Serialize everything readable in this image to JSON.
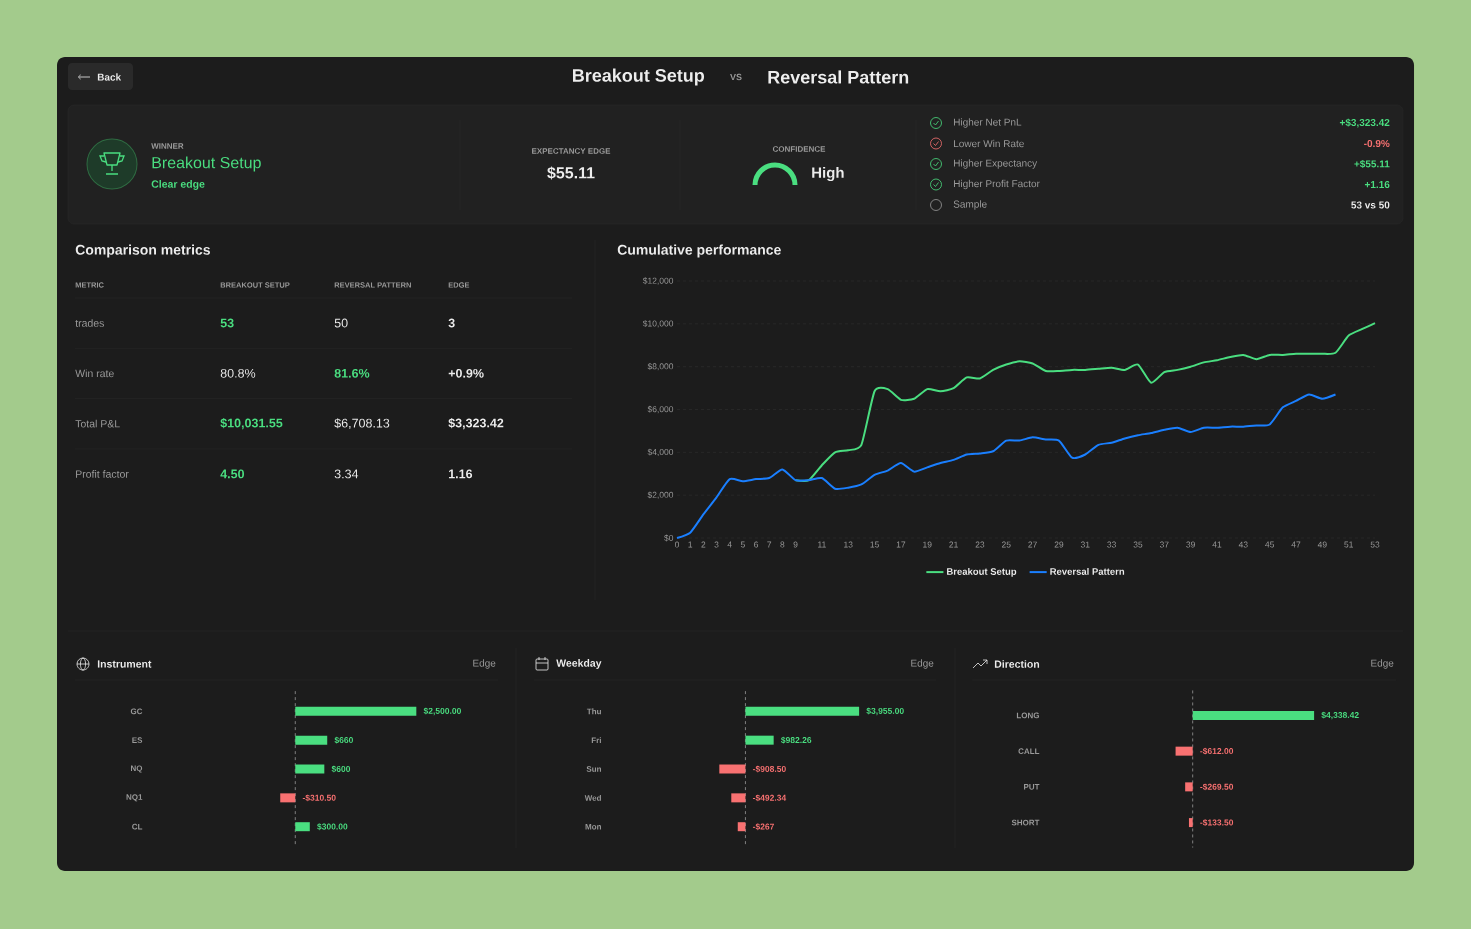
{
  "chart_data": [
    {
      "type": "other",
      "annotations": [
        "Back",
        "Breakout Setup",
        "VS",
        "Reversal Pattern",
        "WINNER",
        "Breakout Setup",
        "Clear edge",
        "EXPECTANCY EDGE",
        "$55.11",
        "CONFIDENCE",
        "High",
        "Higher Net PnL",
        "+$3,323.42",
        "Lower Win Rate",
        "-0.9%",
        "Higher Expectancy",
        "+$55.11",
        "Higher Profit Factor",
        "+1.16",
        "Sample",
        "53 vs 50"
      ]
    },
    {
      "type": "other",
      "title": "Comparison metrics",
      "annotations": [
        "METRIC",
        "BREAKOUT SETUP",
        "REVERSAL PATTERN",
        "EDGE",
        "trades",
        "53",
        "50",
        "3",
        "Win rate",
        "80.8%",
        "81.6%",
        "+0.9%",
        "Total P&L",
        "$10,031.55",
        "$6,708.13",
        "$3,323.42",
        "Profit factor",
        "4.50",
        "3.34",
        "1.16"
      ]
    },
    {
      "type": "line",
      "title": "Cumulative performance",
      "series": [
        {
          "name": "Breakout Setup",
          "color": "#4ade80",
          "x": [
            9,
            10,
            11,
            12,
            13,
            14,
            15,
            16,
            17,
            18,
            19,
            20,
            21,
            22,
            23,
            24,
            25,
            26,
            27,
            28,
            29,
            30,
            31,
            32,
            33,
            34,
            35,
            36,
            37,
            38,
            39,
            40,
            41,
            42,
            43,
            44,
            45,
            46,
            47,
            48,
            49,
            50,
            51,
            52,
            53
          ],
          "values": [
            2700,
            2700,
            3400,
            4000,
            4100,
            4350,
            6850,
            6950,
            6450,
            6500,
            6950,
            6850,
            7000,
            7500,
            7450,
            7850,
            8100,
            8250,
            8150,
            7800,
            7800,
            7850,
            7850,
            7900,
            7950,
            7850,
            8100,
            7250,
            7750,
            7850,
            8000,
            8200,
            8300,
            8450,
            8550,
            8350,
            8550,
            8550,
            8600,
            8600,
            8600,
            8650,
            9450,
            9750,
            10030
          ]
        },
        {
          "name": "Reversal Pattern",
          "color": "#1a7fff",
          "x": [
            0,
            1,
            2,
            3,
            4,
            5,
            6,
            7,
            8,
            9,
            10,
            11,
            12,
            13,
            14,
            15,
            16,
            17,
            18,
            19,
            20,
            21,
            22,
            23,
            24,
            25,
            26,
            27,
            28,
            29,
            30,
            31,
            32,
            33,
            34,
            35,
            36,
            37,
            38,
            39,
            40,
            41,
            42,
            43,
            44,
            45,
            46,
            47,
            48,
            49,
            50
          ],
          "values": [
            0,
            250,
            1100,
            1900,
            2750,
            2650,
            2750,
            2800,
            3200,
            2700,
            2700,
            2800,
            2300,
            2350,
            2500,
            2950,
            3150,
            3500,
            3100,
            3300,
            3500,
            3650,
            3900,
            3950,
            4050,
            4550,
            4550,
            4700,
            4600,
            4550,
            3750,
            3900,
            4350,
            4450,
            4650,
            4800,
            4900,
            5050,
            5150,
            4950,
            5150,
            5150,
            5200,
            5200,
            5250,
            5300,
            6100,
            6400,
            6700,
            6500,
            6700
          ]
        }
      ],
      "xlim": [
        0,
        53
      ],
      "ylim": [
        0,
        12000
      ],
      "xticks": [
        0,
        1,
        2,
        3,
        4,
        5,
        6,
        7,
        8,
        9,
        11,
        13,
        15,
        17,
        19,
        21,
        23,
        25,
        27,
        29,
        31,
        33,
        35,
        37,
        39,
        41,
        43,
        45,
        47,
        49,
        51,
        53
      ],
      "yticks": [
        {
          "value": 0,
          "label": "$0"
        },
        {
          "value": 2000,
          "label": "$2,000"
        },
        {
          "value": 4000,
          "label": "$4,000"
        },
        {
          "value": 6000,
          "label": "$6,000"
        },
        {
          "value": 8000,
          "label": "$8,000"
        },
        {
          "value": 10000,
          "label": "$10,000"
        },
        {
          "value": 12000,
          "label": "$12,000"
        }
      ],
      "grid": "y",
      "legend": "bottom",
      "marker": "none"
    },
    {
      "type": "bar",
      "orientation": "horizontal",
      "title": "Instrument",
      "annotations": [
        "Edge"
      ],
      "categories": [
        "GC",
        "ES",
        "NQ",
        "NQ1",
        "CL"
      ],
      "values": [
        2500,
        660,
        600,
        -310.5,
        300
      ],
      "colors": [
        "#4ade80",
        "#4ade80",
        "#4ade80",
        "#f87171",
        "#4ade80"
      ],
      "value_labels": [
        "$2,500.00",
        "$660",
        "$600",
        "-$310.50",
        "$300.00"
      ],
      "ref_lines": [
        {
          "axis": "x",
          "value": 0,
          "line_style": "dashed"
        }
      ],
      "tick_labels": "y"
    },
    {
      "type": "bar",
      "orientation": "horizontal",
      "title": "Weekday",
      "annotations": [
        "Edge"
      ],
      "categories": [
        "Thu",
        "Fri",
        "Sun",
        "Wed",
        "Mon"
      ],
      "values": [
        3955,
        982.26,
        -908.5,
        -492.34,
        -267
      ],
      "colors": [
        "#4ade80",
        "#4ade80",
        "#f87171",
        "#f87171",
        "#f87171"
      ],
      "value_labels": [
        "$3,955.00",
        "$982.26",
        "-$908.50",
        "-$492.34",
        "-$267"
      ],
      "ref_lines": [
        {
          "axis": "x",
          "value": 0,
          "line_style": "dashed"
        }
      ],
      "tick_labels": "y"
    },
    {
      "type": "bar",
      "orientation": "horizontal",
      "title": "Direction",
      "annotations": [
        "Edge"
      ],
      "categories": [
        "LONG",
        "CALL",
        "PUT",
        "SHORT"
      ],
      "values": [
        4338.42,
        -612,
        -269.5,
        -133.5
      ],
      "colors": [
        "#4ade80",
        "#f87171",
        "#f87171",
        "#f87171"
      ],
      "value_labels": [
        "$4,338.42",
        "-$612.00",
        "-$269.50",
        "-$133.50"
      ],
      "ref_lines": [
        {
          "axis": "x",
          "value": 0,
          "line_style": "dashed"
        }
      ],
      "tick_labels": "y"
    }
  ]
}
